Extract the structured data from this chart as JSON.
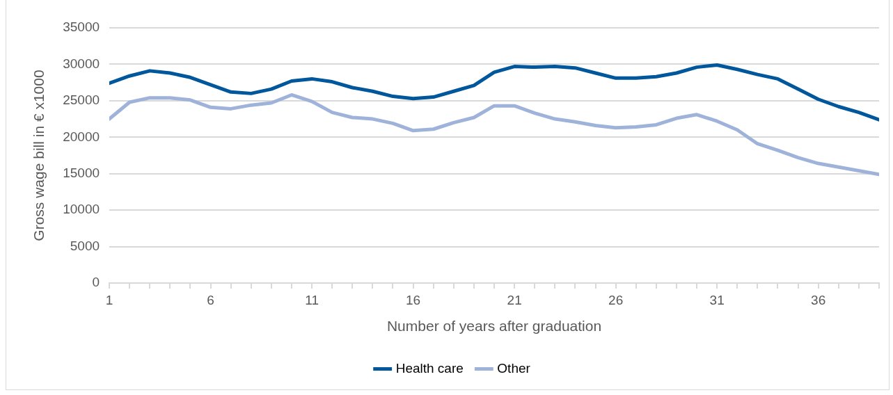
{
  "chart_data": {
    "type": "line",
    "xlabel": "Number of years after graduation",
    "ylabel": "Gross wage bill in € x1000",
    "x": [
      1,
      2,
      3,
      4,
      5,
      6,
      7,
      8,
      9,
      10,
      11,
      12,
      13,
      14,
      15,
      16,
      17,
      18,
      19,
      20,
      21,
      22,
      23,
      24,
      25,
      26,
      27,
      28,
      29,
      30,
      31,
      32,
      33,
      34,
      35,
      36,
      37,
      38,
      39
    ],
    "series": [
      {
        "name": "Health care",
        "color": "#01579b",
        "values": [
          27400,
          28400,
          29100,
          28800,
          28200,
          27200,
          26200,
          26000,
          26600,
          27700,
          28000,
          27600,
          26800,
          26300,
          25600,
          25300,
          25500,
          26300,
          27100,
          28900,
          29700,
          29600,
          29700,
          29500,
          28800,
          28100,
          28100,
          28300,
          28800,
          29600,
          29900,
          29300,
          28600,
          28000,
          26600,
          25200,
          24200,
          23400,
          22400
        ]
      },
      {
        "name": "Other",
        "color": "#9fb3da",
        "values": [
          22500,
          24800,
          25400,
          25400,
          25100,
          24100,
          23900,
          24400,
          24700,
          25800,
          24900,
          23400,
          22700,
          22500,
          21900,
          20900,
          21100,
          22000,
          22700,
          24300,
          24300,
          23300,
          22500,
          22100,
          21600,
          21300,
          21400,
          21700,
          22600,
          23100,
          22200,
          21000,
          19100,
          18200,
          17200,
          16400,
          15900,
          15400,
          14900
        ]
      }
    ],
    "xlim": [
      1,
      39
    ],
    "xticks": [
      1,
      {
        "value": 2,
        "label": null
      },
      {
        "value": 3,
        "label": null
      },
      {
        "value": 4,
        "label": null
      },
      {
        "value": 5,
        "label": null
      },
      6,
      {
        "value": 7,
        "label": null
      },
      {
        "value": 8,
        "label": null
      },
      {
        "value": 9,
        "label": null
      },
      {
        "value": 10,
        "label": null
      },
      11,
      {
        "value": 12,
        "label": null
      },
      {
        "value": 13,
        "label": null
      },
      {
        "value": 14,
        "label": null
      },
      {
        "value": 15,
        "label": null
      },
      16,
      {
        "value": 17,
        "label": null
      },
      {
        "value": 18,
        "label": null
      },
      {
        "value": 19,
        "label": null
      },
      {
        "value": 20,
        "label": null
      },
      21,
      {
        "value": 22,
        "label": null
      },
      {
        "value": 23,
        "label": null
      },
      {
        "value": 24,
        "label": null
      },
      {
        "value": 25,
        "label": null
      },
      26,
      {
        "value": 27,
        "label": null
      },
      {
        "value": 28,
        "label": null
      },
      {
        "value": 29,
        "label": null
      },
      {
        "value": 30,
        "label": null
      },
      31,
      {
        "value": 32,
        "label": null
      },
      {
        "value": 33,
        "label": null
      },
      {
        "value": 34,
        "label": null
      },
      {
        "value": 35,
        "label": null
      },
      36,
      {
        "value": 37,
        "label": null
      },
      {
        "value": 38,
        "label": null
      },
      {
        "value": 39,
        "label": null
      }
    ],
    "ylim": [
      0,
      35000
    ],
    "yticks": [
      0,
      5000,
      10000,
      15000,
      20000,
      25000,
      30000,
      35000
    ],
    "grid": "y",
    "legend": "bottom",
    "marker": "none",
    "line_style": "solid"
  }
}
